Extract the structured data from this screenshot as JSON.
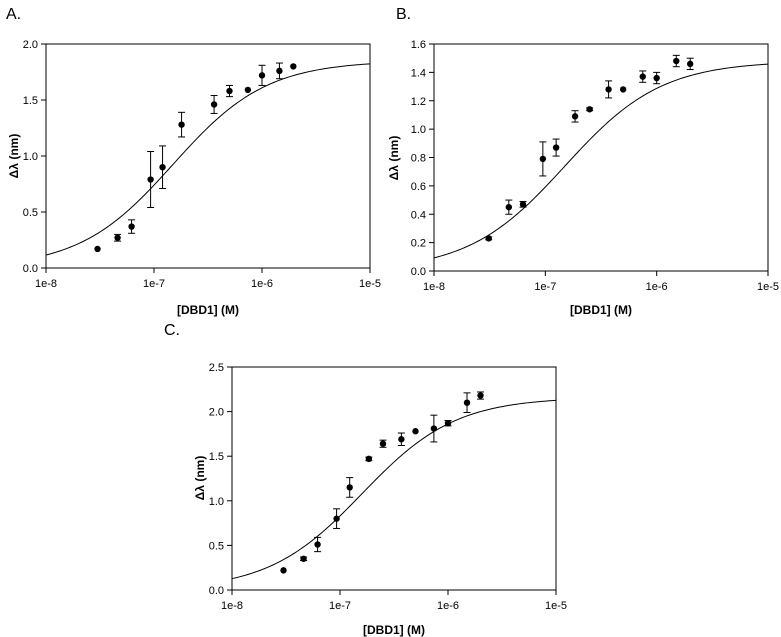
{
  "chart_data": [
    {
      "type": "scatter",
      "panel_label": "A.",
      "xlabel": "[DBD1] (M)",
      "ylabel": "Δλ (nm)",
      "xscale": "log",
      "xlim": [
        1e-08,
        1e-05
      ],
      "ylim": [
        0,
        2.0
      ],
      "xticks": [
        "1e-8",
        "1e-7",
        "1e-6",
        "1e-5"
      ],
      "yticks": [
        "0.0",
        "0.5",
        "1.0",
        "1.5",
        "2.0"
      ],
      "ytick_values": [
        0,
        0.5,
        1.0,
        1.5,
        2.0
      ],
      "fit": {
        "ymax": 1.85,
        "kd": 1.5e-07
      },
      "points": [
        {
          "x": 3e-08,
          "y": 0.17,
          "err": 0
        },
        {
          "x": 4.6e-08,
          "y": 0.27,
          "err": 0.03
        },
        {
          "x": 6.2e-08,
          "y": 0.37,
          "err": 0.06
        },
        {
          "x": 9.3e-08,
          "y": 0.79,
          "err": 0.25
        },
        {
          "x": 1.2e-07,
          "y": 0.9,
          "err": 0.19
        },
        {
          "x": 1.8e-07,
          "y": 1.28,
          "err": 0.11
        },
        {
          "x": 3.6e-07,
          "y": 1.46,
          "err": 0.08
        },
        {
          "x": 5e-07,
          "y": 1.58,
          "err": 0.05
        },
        {
          "x": 7.4e-07,
          "y": 1.59,
          "err": 0
        },
        {
          "x": 1e-06,
          "y": 1.72,
          "err": 0.09
        },
        {
          "x": 1.45e-06,
          "y": 1.76,
          "err": 0.07
        },
        {
          "x": 1.95e-06,
          "y": 1.8,
          "err": 0
        }
      ]
    },
    {
      "type": "scatter",
      "panel_label": "B.",
      "xlabel": "[DBD1] (M)",
      "ylabel": "Δλ (nm)",
      "xscale": "log",
      "xlim": [
        1e-08,
        1e-05
      ],
      "ylim": [
        0,
        1.6
      ],
      "xticks": [
        "1e-8",
        "1e-7",
        "1e-6",
        "1e-5"
      ],
      "yticks": [
        "0.0",
        "0.2",
        "0.4",
        "0.6",
        "0.8",
        "1.0",
        "1.2",
        "1.4",
        "1.6"
      ],
      "ytick_values": [
        0,
        0.2,
        0.4,
        0.6,
        0.8,
        1.0,
        1.2,
        1.4,
        1.6
      ],
      "fit": {
        "ymax": 1.48,
        "kd": 1.5e-07
      },
      "points": [
        {
          "x": 3.1e-08,
          "y": 0.23,
          "err": 0.01
        },
        {
          "x": 4.7e-08,
          "y": 0.45,
          "err": 0.05
        },
        {
          "x": 6.3e-08,
          "y": 0.47,
          "err": 0.02
        },
        {
          "x": 9.5e-08,
          "y": 0.79,
          "err": 0.12
        },
        {
          "x": 1.25e-07,
          "y": 0.87,
          "err": 0.06
        },
        {
          "x": 1.85e-07,
          "y": 1.09,
          "err": 0.04
        },
        {
          "x": 2.5e-07,
          "y": 1.14,
          "err": 0.01
        },
        {
          "x": 3.7e-07,
          "y": 1.28,
          "err": 0.06
        },
        {
          "x": 5e-07,
          "y": 1.28,
          "err": 0
        },
        {
          "x": 7.5e-07,
          "y": 1.37,
          "err": 0.04
        },
        {
          "x": 1e-06,
          "y": 1.36,
          "err": 0.04
        },
        {
          "x": 1.5e-06,
          "y": 1.48,
          "err": 0.04
        },
        {
          "x": 2e-06,
          "y": 1.46,
          "err": 0.04
        }
      ]
    },
    {
      "type": "scatter",
      "panel_label": "C.",
      "xlabel": "[DBD1] (M)",
      "ylabel": "Δλ (nm)",
      "xscale": "log",
      "xlim": [
        1e-08,
        1e-05
      ],
      "ylim": [
        0,
        2.5
      ],
      "xticks": [
        "1e-8",
        "1e-7",
        "1e-6",
        "1e-5"
      ],
      "yticks": [
        "0.0",
        "0.5",
        "1.0",
        "1.5",
        "2.0",
        "2.5"
      ],
      "ytick_values": [
        0,
        0.5,
        1.0,
        1.5,
        2.0,
        2.5
      ],
      "fit": {
        "ymax": 2.16,
        "kd": 1.6e-07
      },
      "points": [
        {
          "x": 3e-08,
          "y": 0.22,
          "err": 0
        },
        {
          "x": 4.6e-08,
          "y": 0.35,
          "err": 0.02
        },
        {
          "x": 6.2e-08,
          "y": 0.51,
          "err": 0.08
        },
        {
          "x": 9.3e-08,
          "y": 0.8,
          "err": 0.11
        },
        {
          "x": 1.23e-07,
          "y": 1.15,
          "err": 0.11
        },
        {
          "x": 1.85e-07,
          "y": 1.47,
          "err": 0.02
        },
        {
          "x": 2.5e-07,
          "y": 1.64,
          "err": 0.04
        },
        {
          "x": 3.7e-07,
          "y": 1.69,
          "err": 0.07
        },
        {
          "x": 5e-07,
          "y": 1.78,
          "err": 0
        },
        {
          "x": 7.4e-07,
          "y": 1.81,
          "err": 0.15
        },
        {
          "x": 1e-06,
          "y": 1.87,
          "err": 0.03
        },
        {
          "x": 1.5e-06,
          "y": 2.1,
          "err": 0.11
        },
        {
          "x": 2e-06,
          "y": 2.18,
          "err": 0.04
        }
      ]
    }
  ]
}
